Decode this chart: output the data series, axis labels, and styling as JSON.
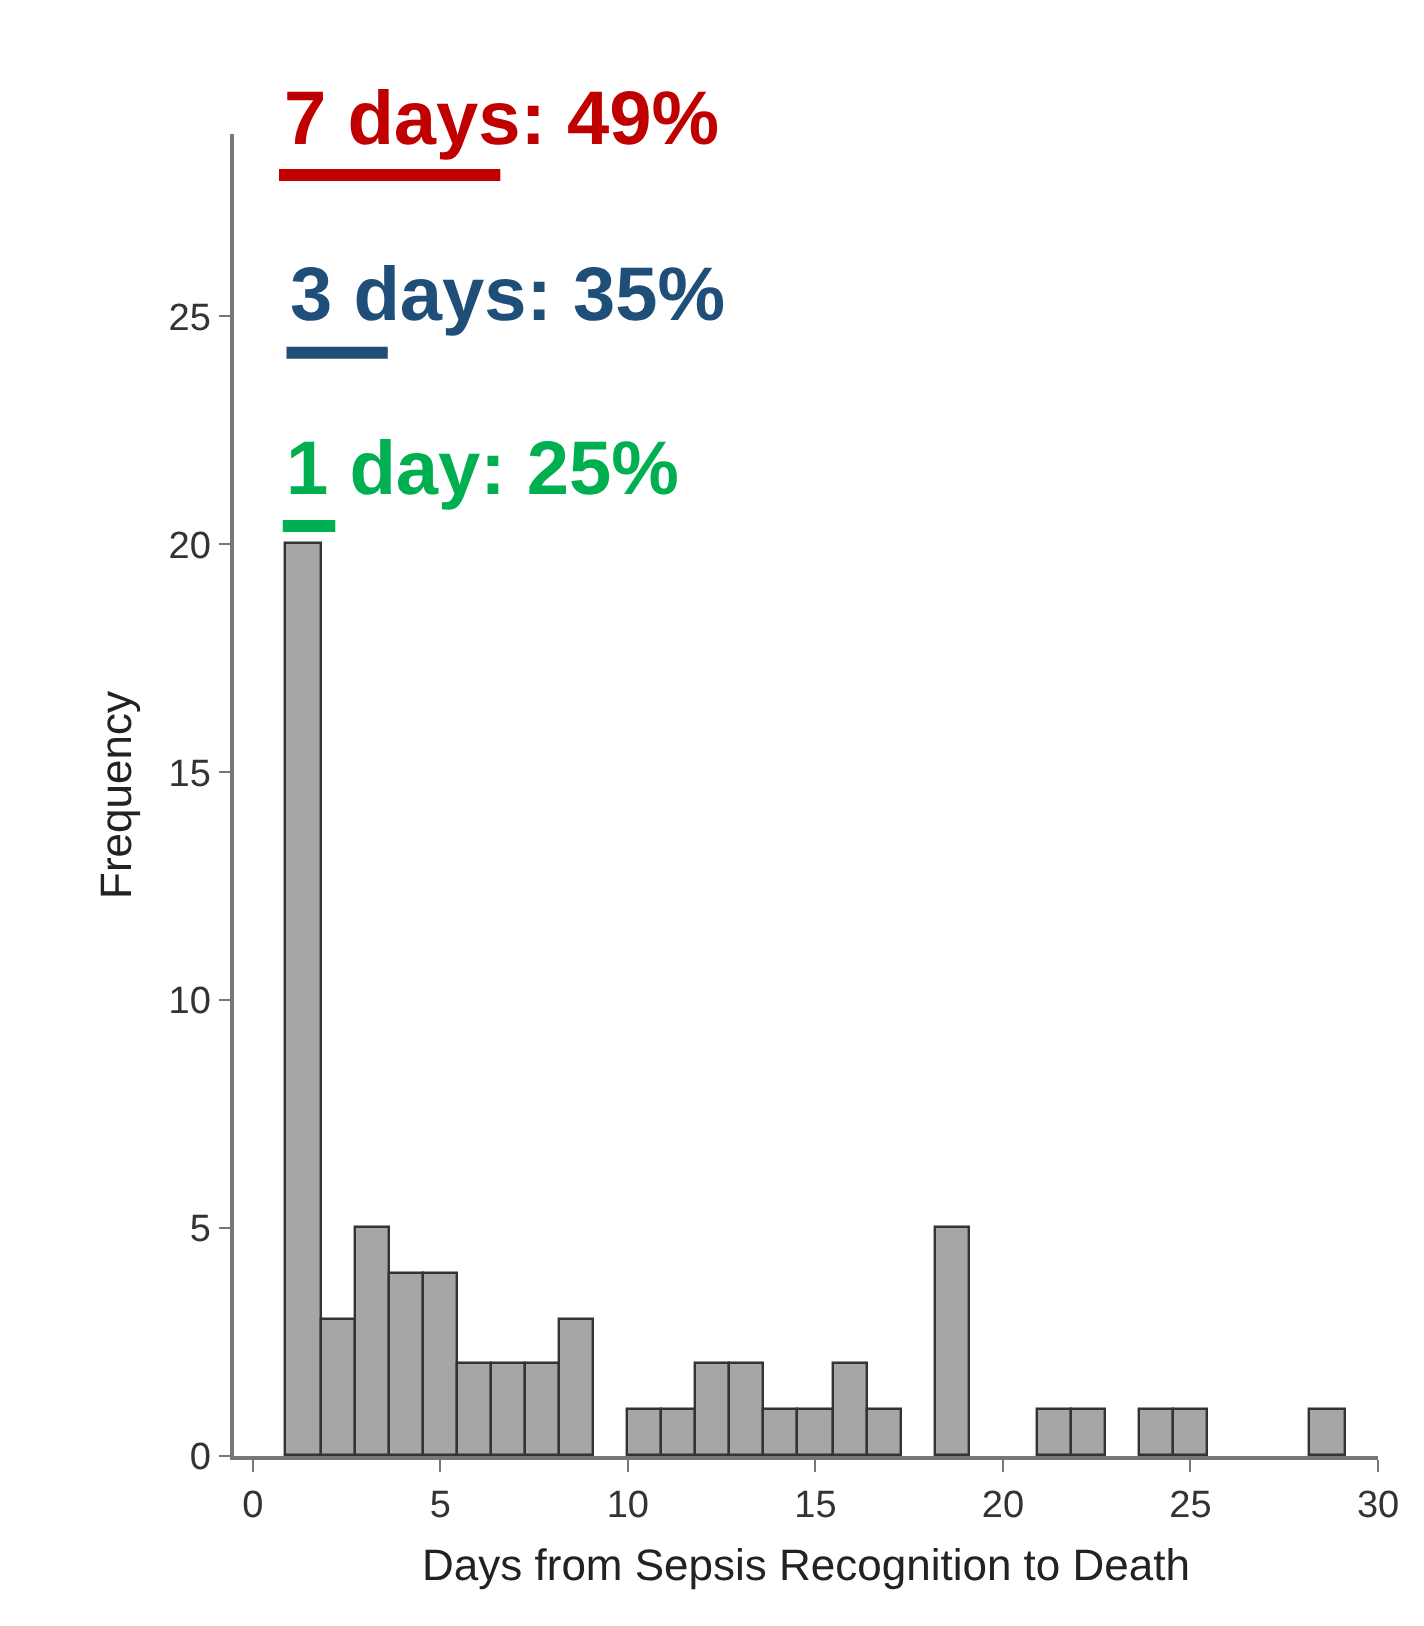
{
  "chart_data": {
    "type": "histogram",
    "xlabel": "Days from Sepsis Recognition to Death",
    "ylabel": "Frequency",
    "bins": [
      0.91,
      1.82,
      2.73,
      3.64,
      4.55,
      5.46,
      6.37,
      7.28,
      8.19,
      9.1,
      10.01,
      10.92,
      11.83,
      12.74,
      13.65,
      14.56,
      15.47,
      16.38,
      17.29,
      18.2,
      19.11,
      20.02,
      20.93,
      21.84,
      22.75,
      23.66,
      24.57,
      25.48,
      26.39,
      27.3,
      28.21,
      29.12
    ],
    "values": [
      20,
      3,
      5,
      4,
      4,
      2,
      2,
      2,
      3,
      0,
      1,
      1,
      2,
      2,
      1,
      1,
      2,
      1,
      0,
      5,
      0,
      0,
      1,
      1,
      0,
      1,
      1,
      0,
      0,
      0,
      1
    ],
    "color": "#a6a6a6",
    "xlim": [
      -0.5,
      30
    ],
    "xticks": [
      0,
      5,
      10,
      15,
      20,
      25,
      30
    ],
    "ylim": [
      0,
      29
    ],
    "yticks": [
      0,
      5,
      10,
      15,
      20,
      25
    ],
    "grid": false,
    "legend": false,
    "marker": "none",
    "series": [
      {
        "type": "line",
        "name": "7 days: 49%",
        "color": "#c00000",
        "x": [
          0.7,
          6.6
        ],
        "values": [
          28.1,
          28.1
        ]
      },
      {
        "type": "line",
        "name": "3 days: 35%",
        "color": "#1f4e79",
        "x": [
          0.9,
          3.6
        ],
        "values": [
          24.2,
          24.2
        ]
      },
      {
        "type": "line",
        "name": "1 day: 25%",
        "color": "#00b050",
        "x": [
          0.8,
          2.2
        ],
        "values": [
          20.4,
          20.4
        ]
      }
    ]
  }
}
